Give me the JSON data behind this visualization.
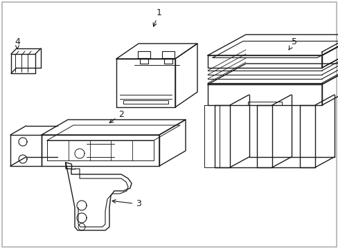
{
  "background_color": "#ffffff",
  "line_color": "#1a1a1a",
  "line_width": 1.0,
  "figsize": [
    4.89,
    3.6
  ],
  "dpi": 100
}
